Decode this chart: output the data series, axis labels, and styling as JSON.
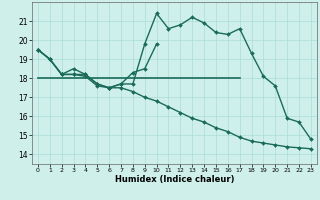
{
  "xlabel": "Humidex (Indice chaleur)",
  "xlim": [
    -0.5,
    23.5
  ],
  "ylim": [
    13.5,
    22.0
  ],
  "yticks": [
    14,
    15,
    16,
    17,
    18,
    19,
    20,
    21
  ],
  "xticks": [
    0,
    1,
    2,
    3,
    4,
    5,
    6,
    7,
    8,
    9,
    10,
    11,
    12,
    13,
    14,
    15,
    16,
    17,
    18,
    19,
    20,
    21,
    22,
    23
  ],
  "bg_color": "#cff0ea",
  "grid_color": "#aaddd6",
  "line_color": "#1a6b5a",
  "series": [
    {
      "x": [
        0,
        1,
        2,
        3,
        4,
        5,
        6,
        7,
        8,
        9,
        10,
        11,
        12,
        13,
        14,
        15,
        16,
        17,
        18,
        19,
        20,
        21,
        22,
        23
      ],
      "y": [
        19.5,
        19.0,
        18.2,
        18.5,
        18.2,
        17.7,
        17.5,
        17.7,
        17.7,
        19.8,
        21.4,
        20.6,
        20.8,
        21.2,
        20.9,
        20.4,
        20.3,
        20.6,
        19.3,
        18.1,
        17.6,
        15.9,
        15.7,
        14.8
      ],
      "marker": "D",
      "markersize": 2.0,
      "linewidth": 1.0
    },
    {
      "x": [
        0,
        1,
        2,
        3,
        4,
        5,
        6,
        7,
        8,
        9,
        10
      ],
      "y": [
        19.5,
        19.0,
        18.2,
        18.2,
        18.2,
        17.7,
        17.5,
        17.7,
        18.3,
        18.5,
        19.8
      ],
      "marker": "D",
      "markersize": 2.0,
      "linewidth": 1.0
    },
    {
      "x": [
        0,
        17
      ],
      "y": [
        18.0,
        18.0
      ],
      "marker": null,
      "markersize": 0,
      "linewidth": 1.2
    },
    {
      "x": [
        0,
        1,
        2,
        3,
        4,
        5,
        6,
        7,
        8,
        9,
        10,
        11,
        12,
        13,
        14,
        15,
        16,
        17,
        18,
        19,
        20,
        21,
        22,
        23
      ],
      "y": [
        19.5,
        19.0,
        18.2,
        18.2,
        18.1,
        17.6,
        17.5,
        17.5,
        17.3,
        17.0,
        16.8,
        16.5,
        16.2,
        15.9,
        15.7,
        15.4,
        15.2,
        14.9,
        14.7,
        14.6,
        14.5,
        14.4,
        14.35,
        14.3
      ],
      "marker": "D",
      "markersize": 2.0,
      "linewidth": 1.0
    }
  ]
}
